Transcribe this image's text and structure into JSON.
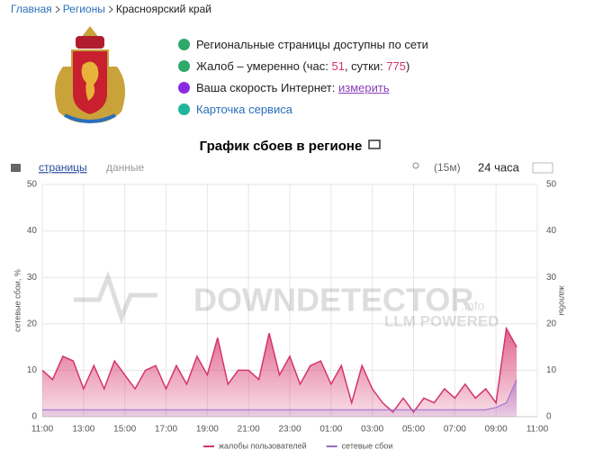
{
  "breadcrumbs": [
    "Главная",
    "Регионы",
    "Красноярский край"
  ],
  "status": {
    "pages": "Региональные страницы доступны по сети",
    "complaints": {
      "prefix": "Жалоб – умеренно (час: ",
      "hour": 51,
      "middle": ", сутки: ",
      "day": 775,
      "suffix": ")"
    },
    "speed": {
      "text": "Ваша скорость Интернет:",
      "link": "измерить"
    },
    "card": "Карточка сервиса"
  },
  "tabs": [
    "страницы",
    "данные"
  ],
  "controls": {
    "interval": "(15м)",
    "period": "24 часа"
  },
  "watermark": {
    "brand": "DOWNDETECTOR",
    "domain": ".info",
    "tagline": "LLM POWERED"
  },
  "chart_data": {
    "type": "area",
    "title": "График сбоев в регионе",
    "y_label": "сетевые сбои, %",
    "y2_label": "жалобы",
    "x": [
      0,
      0.5,
      1,
      1.5,
      2,
      2.5,
      3,
      3.5,
      4,
      4.5,
      5,
      5.5,
      6,
      6.5,
      7,
      7.5,
      8,
      8.5,
      9,
      9.5,
      10,
      10.5,
      11,
      11.5,
      12,
      12.5,
      13,
      13.5,
      14,
      14.5,
      15,
      15.5,
      16,
      16.5,
      17,
      17.5,
      18,
      18.5,
      19,
      19.5,
      20,
      20.5,
      21,
      21.5,
      22,
      22.5,
      23
    ],
    "xlim": [
      0,
      24
    ],
    "xticks": [
      {
        "value": 0,
        "label": "11:00"
      },
      {
        "value": 2,
        "label": "13:00"
      },
      {
        "value": 4,
        "label": "15:00"
      },
      {
        "value": 6,
        "label": "17:00"
      },
      {
        "value": 8,
        "label": "19:00"
      },
      {
        "value": 10,
        "label": "21:00"
      },
      {
        "value": 12,
        "label": "23:00"
      },
      {
        "value": 14,
        "label": "01:00"
      },
      {
        "value": 16,
        "label": "03:00"
      },
      {
        "value": 18,
        "label": "05:00"
      },
      {
        "value": 20,
        "label": "07:00"
      },
      {
        "value": 22,
        "label": "09:00"
      },
      {
        "value": 24,
        "label": "11:00"
      }
    ],
    "ylim": [
      0,
      50
    ],
    "yticks": [
      0,
      10,
      20,
      30,
      40,
      50
    ],
    "y2lim": [
      0,
      50
    ],
    "y2ticks": [
      0,
      10,
      20,
      30,
      40,
      50
    ],
    "grid": true,
    "series": [
      {
        "name": "жалобы пользователей",
        "color": "#d6336c",
        "axis": "y2",
        "values": [
          10,
          8,
          13,
          12,
          6,
          11,
          6,
          12,
          9,
          6,
          10,
          11,
          6,
          11,
          7,
          13,
          9,
          17,
          7,
          10,
          10,
          8,
          18,
          9,
          13,
          7,
          11,
          12,
          7,
          11,
          3,
          11,
          6,
          3,
          1,
          4,
          1,
          4,
          3,
          6,
          4,
          7,
          4,
          6,
          3,
          19,
          15
        ]
      },
      {
        "name": "сетевые сбои",
        "color": "#9b6bc9",
        "values": [
          1.5,
          1.5,
          1.5,
          1.5,
          1.5,
          1.5,
          1.5,
          1.5,
          1.5,
          1.5,
          1.5,
          1.5,
          1.5,
          1.5,
          1.5,
          1.5,
          1.5,
          1.5,
          1.5,
          1.5,
          1.5,
          1.5,
          1.5,
          1.5,
          1.5,
          1.5,
          1.5,
          1.5,
          1.5,
          1.5,
          1.5,
          1.5,
          1.5,
          1.5,
          1.5,
          1.5,
          1.5,
          1.5,
          1.5,
          1.5,
          1.5,
          1.5,
          1.5,
          1.5,
          2,
          3,
          8
        ]
      }
    ]
  }
}
